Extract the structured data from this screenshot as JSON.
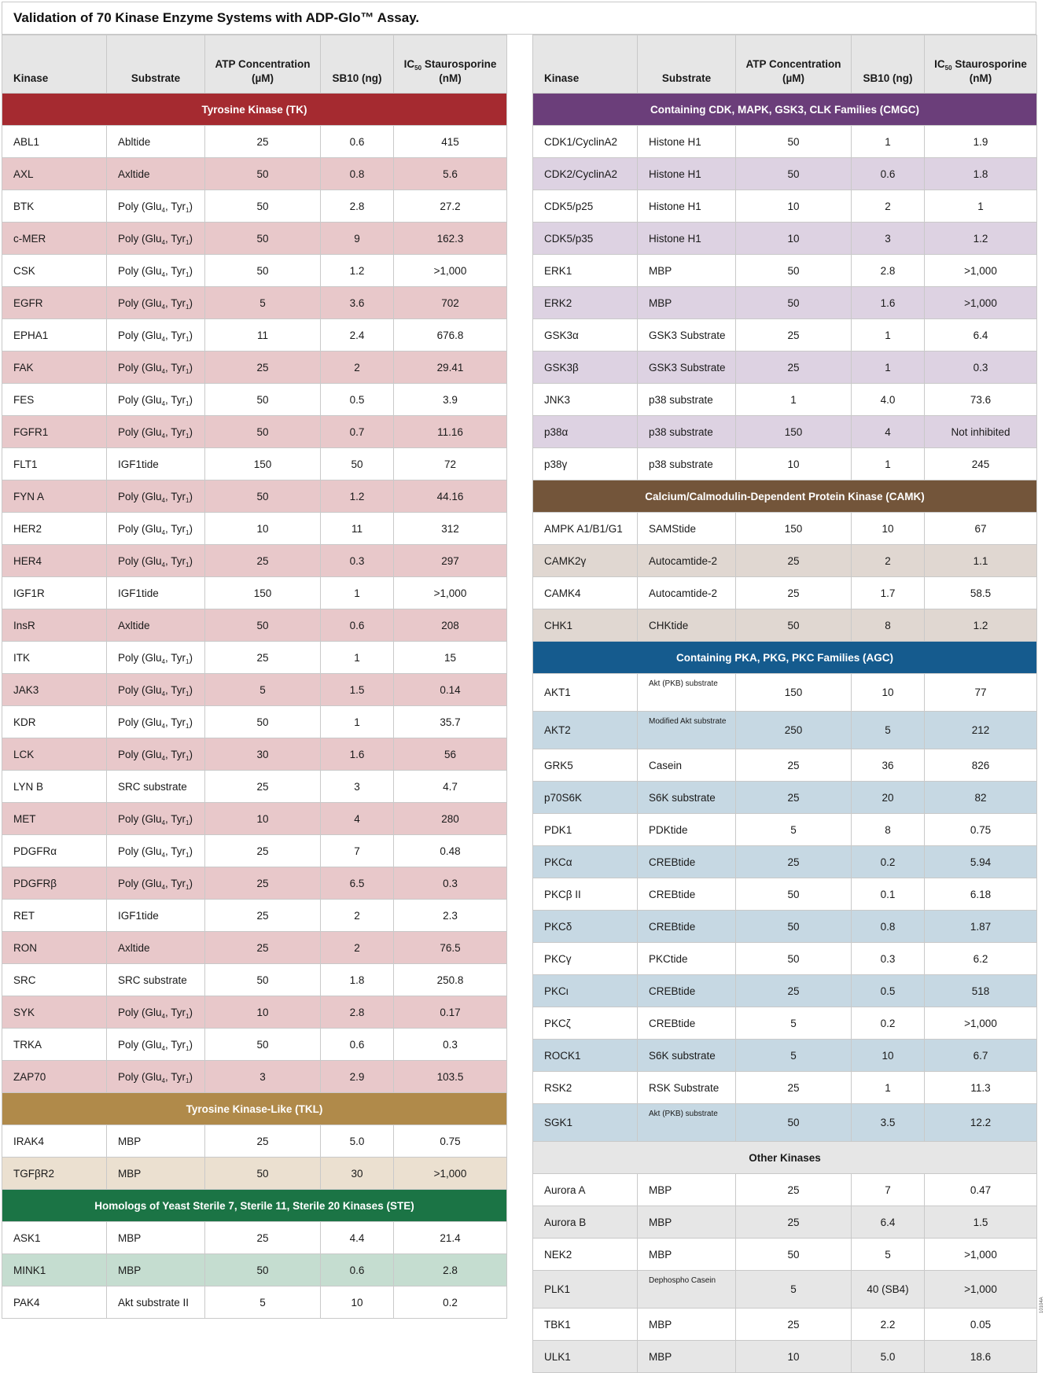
{
  "title": "Validation of 70 Kinase Enzyme Systems with ADP-Glo™ Assay.",
  "side_code": "10104A",
  "headers": {
    "kinase": "Kinase",
    "substrate": "Substrate",
    "atp_line1": "ATP Concentration",
    "atp_line2": "(µM)",
    "sb10": "SB10  (ng)",
    "ic50_pre": "IC",
    "ic50_sub": "50",
    "ic50_post": " Staurosporine",
    "ic50_unit": "(nM)"
  },
  "colors": {
    "tk": "#a52a30",
    "tk_alt": "#e8c8ca",
    "tkl": "#b08a4a",
    "tkl_alt": "#ebe0d0",
    "ste": "#1b7445",
    "ste_alt": "#c5ddd0",
    "cmgc": "#6b3e7a",
    "cmgc_alt": "#ddd2e2",
    "camk": "#73553a",
    "camk_alt": "#e0d7d1",
    "agc": "#155b8e",
    "agc_alt": "#c6d8e3",
    "other": "#e6e6e6",
    "other_alt": "#e6e6e6"
  },
  "left_sections": [
    {
      "name": "Tyrosine Kinase (TK)",
      "color_key": "tk",
      "rows": [
        {
          "kinase": "ABL1",
          "substrate": "Abltide",
          "atp": "25",
          "sb10": "0.6",
          "ic50": "415"
        },
        {
          "kinase": "AXL",
          "substrate": "Axltide",
          "atp": "50",
          "sb10": "0.8",
          "ic50": "5.6"
        },
        {
          "kinase": "BTK",
          "substrate": "Poly (Glu4, Tyr1)",
          "atp": "50",
          "sb10": "2.8",
          "ic50": "27.2"
        },
        {
          "kinase": "c-MER",
          "substrate": "Poly (Glu4, Tyr1)",
          "atp": "50",
          "sb10": "9",
          "ic50": "162.3"
        },
        {
          "kinase": "CSK",
          "substrate": "Poly (Glu4, Tyr1)",
          "atp": "50",
          "sb10": "1.2",
          "ic50": ">1,000"
        },
        {
          "kinase": "EGFR",
          "substrate": "Poly (Glu4, Tyr1)",
          "atp": "5",
          "sb10": "3.6",
          "ic50": "702"
        },
        {
          "kinase": "EPHA1",
          "substrate": "Poly (Glu4, Tyr1)",
          "atp": "11",
          "sb10": "2.4",
          "ic50": "676.8"
        },
        {
          "kinase": "FAK",
          "substrate": "Poly (Glu4, Tyr1)",
          "atp": "25",
          "sb10": "2",
          "ic50": "29.41"
        },
        {
          "kinase": "FES",
          "substrate": "Poly (Glu4, Tyr1)",
          "atp": "50",
          "sb10": "0.5",
          "ic50": "3.9"
        },
        {
          "kinase": "FGFR1",
          "substrate": "Poly (Glu4, Tyr1)",
          "atp": "50",
          "sb10": "0.7",
          "ic50": "11.16"
        },
        {
          "kinase": "FLT1",
          "substrate": "IGF1tide",
          "atp": "150",
          "sb10": "50",
          "ic50": "72"
        },
        {
          "kinase": "FYN A",
          "substrate": "Poly (Glu4, Tyr1)",
          "atp": "50",
          "sb10": "1.2",
          "ic50": "44.16"
        },
        {
          "kinase": "HER2",
          "substrate": "Poly (Glu4, Tyr1)",
          "atp": "10",
          "sb10": "11",
          "ic50": "312"
        },
        {
          "kinase": "HER4",
          "substrate": "Poly (Glu4, Tyr1)",
          "atp": "25",
          "sb10": "0.3",
          "ic50": "297"
        },
        {
          "kinase": "IGF1R",
          "substrate": "IGF1tide",
          "atp": "150",
          "sb10": "1",
          "ic50": ">1,000"
        },
        {
          "kinase": "InsR",
          "substrate": "Axltide",
          "atp": "50",
          "sb10": "0.6",
          "ic50": "208"
        },
        {
          "kinase": "ITK",
          "substrate": "Poly (Glu4, Tyr1)",
          "atp": "25",
          "sb10": "1",
          "ic50": "15"
        },
        {
          "kinase": "JAK3",
          "substrate": "Poly (Glu4, Tyr1)",
          "atp": "5",
          "sb10": "1.5",
          "ic50": "0.14"
        },
        {
          "kinase": "KDR",
          "substrate": "Poly (Glu4, Tyr1)",
          "atp": "50",
          "sb10": "1",
          "ic50": "35.7"
        },
        {
          "kinase": "LCK",
          "substrate": "Poly (Glu4, Tyr1)",
          "atp": "30",
          "sb10": "1.6",
          "ic50": "56"
        },
        {
          "kinase": "LYN B",
          "substrate": "SRC substrate",
          "atp": "25",
          "sb10": "3",
          "ic50": "4.7"
        },
        {
          "kinase": "MET",
          "substrate": "Poly (Glu4, Tyr1)",
          "atp": "10",
          "sb10": "4",
          "ic50": "280"
        },
        {
          "kinase": "PDGFRα",
          "substrate": "Poly (Glu4, Tyr1)",
          "atp": "25",
          "sb10": "7",
          "ic50": "0.48"
        },
        {
          "kinase": "PDGFRβ",
          "substrate": "Poly (Glu4, Tyr1)",
          "atp": "25",
          "sb10": "6.5",
          "ic50": "0.3"
        },
        {
          "kinase": "RET",
          "substrate": "IGF1tide",
          "atp": "25",
          "sb10": "2",
          "ic50": "2.3"
        },
        {
          "kinase": "RON",
          "substrate": "Axltide",
          "atp": "25",
          "sb10": "2",
          "ic50": "76.5"
        },
        {
          "kinase": "SRC",
          "substrate": "SRC substrate",
          "atp": "50",
          "sb10": "1.8",
          "ic50": "250.8"
        },
        {
          "kinase": "SYK",
          "substrate": "Poly (Glu4, Tyr1)",
          "atp": "10",
          "sb10": "2.8",
          "ic50": "0.17"
        },
        {
          "kinase": "TRKA",
          "substrate": "Poly (Glu4, Tyr1)",
          "atp": "50",
          "sb10": "0.6",
          "ic50": "0.3"
        },
        {
          "kinase": "ZAP70",
          "substrate": "Poly (Glu4, Tyr1)",
          "atp": "3",
          "sb10": "2.9",
          "ic50": "103.5"
        }
      ]
    },
    {
      "name": "Tyrosine Kinase-Like (TKL)",
      "color_key": "tkl",
      "rows": [
        {
          "kinase": "IRAK4",
          "substrate": "MBP",
          "atp": "25",
          "sb10": "5.0",
          "ic50": "0.75"
        },
        {
          "kinase": "TGFβR2",
          "substrate": "MBP",
          "atp": "50",
          "sb10": "30",
          "ic50": ">1,000"
        }
      ]
    },
    {
      "name": "Homologs of Yeast Sterile 7, Sterile 11, Sterile 20 Kinases (STE)",
      "color_key": "ste",
      "rows": [
        {
          "kinase": "ASK1",
          "substrate": "MBP",
          "atp": "25",
          "sb10": "4.4",
          "ic50": "21.4"
        },
        {
          "kinase": "MINK1",
          "substrate": "MBP",
          "atp": "50",
          "sb10": "0.6",
          "ic50": "2.8"
        },
        {
          "kinase": "PAK4",
          "substrate": "Akt substrate II",
          "atp": "5",
          "sb10": "10",
          "ic50": "0.2"
        }
      ]
    }
  ],
  "right_sections": [
    {
      "name": "Containing CDK, MAPK, GSK3, CLK Families (CMGC)",
      "color_key": "cmgc",
      "rows": [
        {
          "kinase": "CDK1/CyclinA2",
          "substrate": "Histone H1",
          "atp": "50",
          "sb10": "1",
          "ic50": "1.9"
        },
        {
          "kinase": "CDK2/CyclinA2",
          "substrate": "Histone H1",
          "atp": "50",
          "sb10": "0.6",
          "ic50": "1.8"
        },
        {
          "kinase": "CDK5/p25",
          "substrate": "Histone H1",
          "atp": "10",
          "sb10": "2",
          "ic50": "1"
        },
        {
          "kinase": "CDK5/p35",
          "substrate": "Histone H1",
          "atp": "10",
          "sb10": "3",
          "ic50": "1.2"
        },
        {
          "kinase": "ERK1",
          "substrate": "MBP",
          "atp": "50",
          "sb10": "2.8",
          "ic50": ">1,000"
        },
        {
          "kinase": "ERK2",
          "substrate": "MBP",
          "atp": "50",
          "sb10": "1.6",
          "ic50": ">1,000"
        },
        {
          "kinase": "GSK3α",
          "substrate": "GSK3 Substrate",
          "atp": "25",
          "sb10": "1",
          "ic50": "6.4"
        },
        {
          "kinase": "GSK3β",
          "substrate": "GSK3 Substrate",
          "atp": "25",
          "sb10": "1",
          "ic50": "0.3"
        },
        {
          "kinase": "JNK3",
          "substrate": "p38 substrate",
          "atp": "1",
          "sb10": "4.0",
          "ic50": "73.6"
        },
        {
          "kinase": "p38α",
          "substrate": "p38 substrate",
          "atp": "150",
          "sb10": "4",
          "ic50": "Not inhibited"
        },
        {
          "kinase": "p38γ",
          "substrate": "p38 substrate",
          "atp": "10",
          "sb10": "1",
          "ic50": "245"
        }
      ]
    },
    {
      "name": "Calcium/Calmodulin-Dependent Protein Kinase (CAMK)",
      "color_key": "camk",
      "rows": [
        {
          "kinase": "AMPK A1/B1/G1",
          "substrate": "SAMStide",
          "atp": "150",
          "sb10": "10",
          "ic50": "67"
        },
        {
          "kinase": "CAMK2γ",
          "substrate": "Autocamtide-2",
          "atp": "25",
          "sb10": "2",
          "ic50": "1.1"
        },
        {
          "kinase": "CAMK4",
          "substrate": "Autocamtide-2",
          "atp": "25",
          "sb10": "1.7",
          "ic50": "58.5"
        },
        {
          "kinase": "CHK1",
          "substrate": "CHKtide",
          "atp": "50",
          "sb10": "8",
          "ic50": "1.2"
        }
      ]
    },
    {
      "name": "Containing PKA, PKG, PKC Families  (AGC)",
      "color_key": "agc",
      "rows": [
        {
          "kinase": "AKT1",
          "substrate": "Akt (PKB) substrate",
          "small": true,
          "atp": "150",
          "sb10": "10",
          "ic50": "77"
        },
        {
          "kinase": "AKT2",
          "substrate": "Modified Akt substrate",
          "small": true,
          "atp": "250",
          "sb10": "5",
          "ic50": "212"
        },
        {
          "kinase": "GRK5",
          "substrate": "Casein",
          "atp": "25",
          "sb10": "36",
          "ic50": "826"
        },
        {
          "kinase": "p70S6K",
          "substrate": "S6K substrate",
          "atp": "25",
          "sb10": "20",
          "ic50": "82"
        },
        {
          "kinase": "PDK1",
          "substrate": "PDKtide",
          "atp": "5",
          "sb10": "8",
          "ic50": "0.75"
        },
        {
          "kinase": "PKCα",
          "substrate": "CREBtide",
          "atp": "25",
          "sb10": "0.2",
          "ic50": "5.94"
        },
        {
          "kinase": "PKCβ II",
          "substrate": "CREBtide",
          "atp": "50",
          "sb10": "0.1",
          "ic50": "6.18"
        },
        {
          "kinase": "PKCδ",
          "substrate": "CREBtide",
          "atp": "50",
          "sb10": "0.8",
          "ic50": "1.87"
        },
        {
          "kinase": "PKCγ",
          "substrate": "PKCtide",
          "atp": "50",
          "sb10": "0.3",
          "ic50": "6.2"
        },
        {
          "kinase": "PKCι",
          "substrate": "CREBtide",
          "atp": "25",
          "sb10": "0.5",
          "ic50": "518"
        },
        {
          "kinase": "PKCζ",
          "substrate": "CREBtide",
          "atp": "5",
          "sb10": "0.2",
          "ic50": ">1,000"
        },
        {
          "kinase": "ROCK1",
          "substrate": "S6K substrate",
          "atp": "5",
          "sb10": "10",
          "ic50": "6.7"
        },
        {
          "kinase": "RSK2",
          "substrate": "RSK Substrate",
          "atp": "25",
          "sb10": "1",
          "ic50": "11.3"
        },
        {
          "kinase": "SGK1",
          "substrate": "Akt (PKB) substrate",
          "small": true,
          "atp": "50",
          "sb10": "3.5",
          "ic50": "12.2"
        }
      ]
    },
    {
      "name": "Other Kinases",
      "color_key": "other",
      "rows": [
        {
          "kinase": "Aurora A",
          "substrate": "MBP",
          "atp": "25",
          "sb10": "7",
          "ic50": "0.47"
        },
        {
          "kinase": "Aurora B",
          "substrate": "MBP",
          "atp": "25",
          "sb10": "6.4",
          "ic50": "1.5"
        },
        {
          "kinase": "NEK2",
          "substrate": "MBP",
          "atp": "50",
          "sb10": "5",
          "ic50": ">1,000"
        },
        {
          "kinase": "PLK1",
          "substrate": "Dephospho Casein",
          "small": true,
          "atp": "5",
          "sb10": "40 (SB4)",
          "ic50": ">1,000"
        },
        {
          "kinase": "TBK1",
          "substrate": "MBP",
          "atp": "25",
          "sb10": "2.2",
          "ic50": "0.05"
        },
        {
          "kinase": "ULK1",
          "substrate": "MBP",
          "atp": "10",
          "sb10": "5.0",
          "ic50": "18.6"
        }
      ]
    }
  ]
}
